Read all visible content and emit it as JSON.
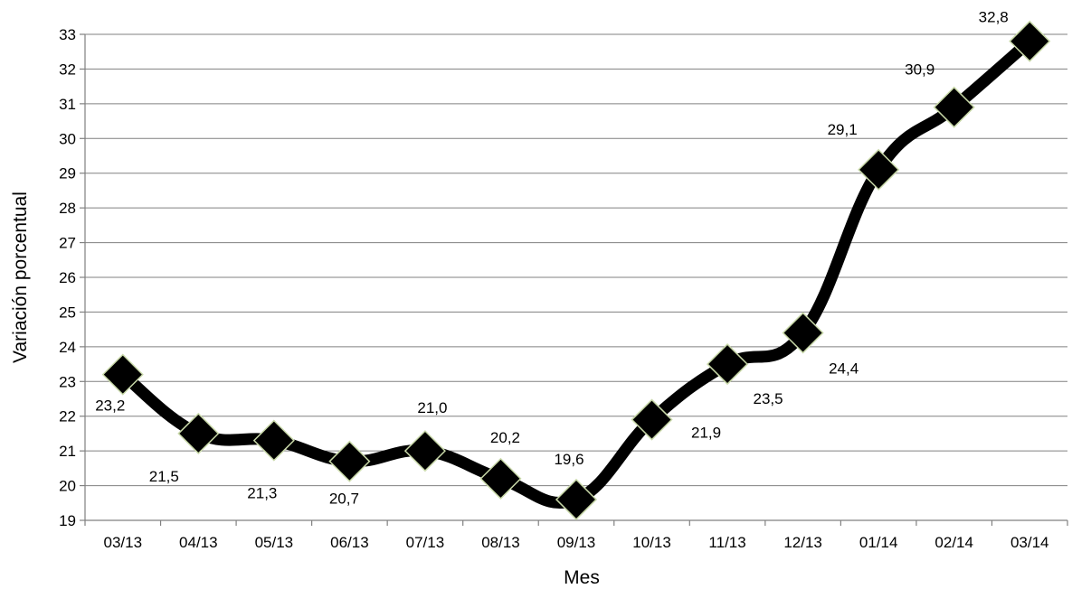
{
  "chart_data": {
    "type": "line",
    "categories": [
      "03/13",
      "04/13",
      "05/13",
      "06/13",
      "07/13",
      "08/13",
      "09/13",
      "10/13",
      "11/13",
      "12/13",
      "01/14",
      "02/14",
      "03/14"
    ],
    "series": [
      {
        "values": [
          23.2,
          21.5,
          21.3,
          20.7,
          21.0,
          20.2,
          19.6,
          21.9,
          23.5,
          24.4,
          29.1,
          30.9,
          32.8
        ],
        "data_labels": [
          "23,2",
          "21,5",
          "21,3",
          "20,7",
          "21,0",
          "20,2",
          "19,6",
          "21,9",
          "23,5",
          "24,4",
          "29,1",
          "30,9",
          "32,8"
        ],
        "color": "#000000",
        "marker": "diamond",
        "smooth": true
      }
    ],
    "xlabel": "Mes",
    "ylabel": "Variación porcentual",
    "ylim": [
      19,
      33
    ],
    "ytick_step": 1,
    "grid": true
  }
}
